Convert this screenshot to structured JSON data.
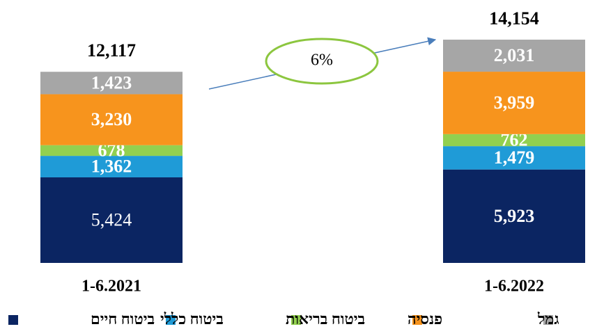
{
  "chart_data": {
    "type": "stacked_bar",
    "categories": [
      "1-6.2021",
      "1-6.2022"
    ],
    "series": [
      {
        "name": "ביטוח חיים",
        "color": "#0b2562",
        "values": [
          5424,
          5923
        ],
        "value_labels": [
          "5,424",
          "5,923"
        ]
      },
      {
        "name": "ביטוח כללי",
        "color": "#1f9bd7",
        "values": [
          1362,
          1479
        ],
        "value_labels": [
          "1,362",
          "1,479"
        ]
      },
      {
        "name": "ביטוח בריאות",
        "color": "#92d050",
        "values": [
          678,
          762
        ],
        "value_labels": [
          "678",
          "762"
        ]
      },
      {
        "name": "פנסיה",
        "color": "#f7941d",
        "values": [
          3230,
          3959
        ],
        "value_labels": [
          "3,230",
          "3,959"
        ]
      },
      {
        "name": "גמל",
        "color": "#a6a6a6",
        "values": [
          1423,
          2031
        ],
        "value_labels": [
          "1,423",
          "2,031"
        ]
      }
    ],
    "totals": [
      12117,
      14154
    ],
    "total_labels": [
      "12,117",
      "14,154"
    ],
    "annotation": "6%"
  }
}
